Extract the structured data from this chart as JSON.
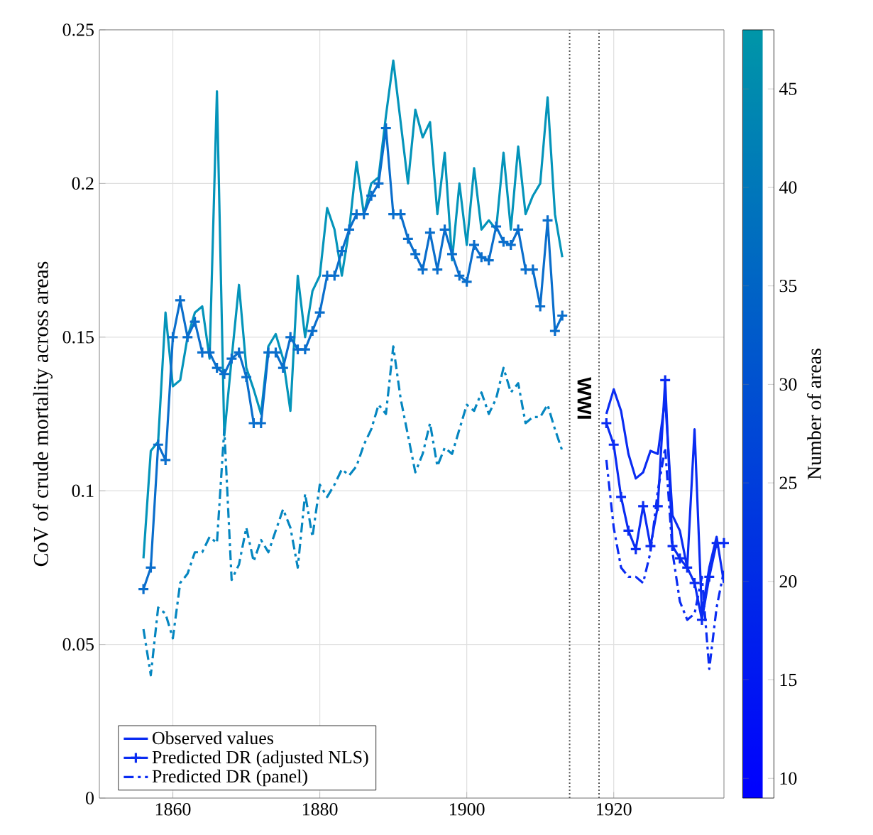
{
  "chart_data": {
    "type": "line",
    "ylabel": "CoV of crude mortality across areas",
    "clabel": "Number of areas",
    "clim": [
      9,
      48
    ],
    "cticks": [
      10,
      15,
      20,
      25,
      30,
      35,
      40,
      45
    ],
    "xlim": [
      1850,
      1935
    ],
    "xticks": [
      1860,
      1880,
      1900,
      1920
    ],
    "ylim": [
      0,
      0.25
    ],
    "yticks": [
      0,
      0.05,
      0.1,
      0.15,
      0.2,
      0.25
    ],
    "grid": true,
    "legend": "bottom left",
    "annotations": [
      "WWI"
    ],
    "ref_lines": [
      {
        "axis": "x",
        "value": 1914,
        "color": "#555555",
        "line_style": "dotted"
      },
      {
        "axis": "x",
        "value": 1918,
        "color": "#555555",
        "line_style": "dotted"
      }
    ],
    "series": [
      {
        "name": "Observed values",
        "color": "#0a2cf2",
        "marker": "none",
        "line_style": "solid",
        "x": [
          1919,
          1920,
          1921,
          1922,
          1923,
          1924,
          1925,
          1926,
          1927,
          1928,
          1929,
          1930,
          1931,
          1932,
          1933,
          1934,
          1935
        ],
        "values": [
          0.125,
          0.133,
          0.126,
          0.112,
          0.104,
          0.106,
          0.113,
          0.112,
          0.13,
          0.092,
          0.087,
          0.075,
          0.12,
          0.06,
          0.075,
          0.085,
          0.07
        ]
      },
      {
        "name": "Predicted DR (adjusted NLS)",
        "color": "#0a2cf2",
        "marker": "cross",
        "line_style": "solid",
        "x": [
          1919,
          1920,
          1921,
          1922,
          1923,
          1924,
          1925,
          1926,
          1927,
          1928,
          1929,
          1930,
          1931,
          1932,
          1933,
          1934,
          1935
        ],
        "values": [
          0.122,
          0.115,
          0.098,
          0.087,
          0.081,
          0.095,
          0.082,
          0.095,
          0.136,
          0.082,
          0.078,
          0.075,
          0.07,
          0.058,
          0.072,
          0.083,
          0.083
        ]
      },
      {
        "name": "Predicted DR (panel)",
        "color": "#0a2cf2",
        "marker": "none",
        "line_style": "dashdot",
        "x": [
          1919,
          1920,
          1921,
          1922,
          1923,
          1924,
          1925,
          1926,
          1927,
          1928,
          1929,
          1930,
          1931,
          1932,
          1933,
          1934,
          1935
        ],
        "values": [
          0.11,
          0.088,
          0.075,
          0.072,
          0.072,
          0.07,
          0.08,
          0.1,
          0.114,
          0.08,
          0.064,
          0.058,
          0.06,
          0.072,
          0.042,
          0.062,
          0.074
        ]
      },
      {
        "color": "#0494ba",
        "marker": "none",
        "line_style": "solid",
        "x": [
          1856,
          1857,
          1858,
          1859,
          1860,
          1861,
          1862,
          1863,
          1864,
          1865,
          1866,
          1867,
          1868,
          1869,
          1870,
          1871,
          1872,
          1873,
          1874,
          1875,
          1876,
          1877,
          1878,
          1879,
          1880,
          1881,
          1882,
          1883,
          1884,
          1885,
          1886,
          1887,
          1888,
          1889,
          1890,
          1891,
          1892,
          1893,
          1894,
          1895,
          1896,
          1897,
          1898,
          1899,
          1900,
          1901,
          1902,
          1903,
          1904,
          1905,
          1906,
          1907,
          1908,
          1909,
          1910,
          1911,
          1912,
          1913
        ],
        "values": [
          0.078,
          0.113,
          0.116,
          0.158,
          0.134,
          0.136,
          0.15,
          0.158,
          0.16,
          0.143,
          0.23,
          0.118,
          0.143,
          0.167,
          0.14,
          0.133,
          0.125,
          0.147,
          0.151,
          0.143,
          0.126,
          0.17,
          0.15,
          0.165,
          0.17,
          0.192,
          0.185,
          0.17,
          0.185,
          0.207,
          0.19,
          0.2,
          0.202,
          0.222,
          0.24,
          0.22,
          0.2,
          0.224,
          0.215,
          0.22,
          0.19,
          0.21,
          0.175,
          0.2,
          0.18,
          0.205,
          0.185,
          0.188,
          0.185,
          0.21,
          0.185,
          0.212,
          0.19,
          0.196,
          0.2,
          0.228,
          0.19,
          0.176
        ]
      },
      {
        "color": "#0a6ecc",
        "marker": "cross",
        "line_style": "solid",
        "x": [
          1856,
          1857,
          1858,
          1859,
          1860,
          1861,
          1862,
          1863,
          1864,
          1865,
          1866,
          1867,
          1868,
          1869,
          1870,
          1871,
          1872,
          1873,
          1874,
          1875,
          1876,
          1877,
          1878,
          1879,
          1880,
          1881,
          1882,
          1883,
          1884,
          1885,
          1886,
          1887,
          1888,
          1889,
          1890,
          1891,
          1892,
          1893,
          1894,
          1895,
          1896,
          1897,
          1898,
          1899,
          1900,
          1901,
          1902,
          1903,
          1904,
          1905,
          1906,
          1907,
          1908,
          1909,
          1910,
          1911,
          1912,
          1913
        ],
        "values": [
          0.068,
          0.075,
          0.115,
          0.11,
          0.15,
          0.162,
          0.15,
          0.155,
          0.145,
          0.145,
          0.14,
          0.138,
          0.143,
          0.145,
          0.137,
          0.122,
          0.122,
          0.145,
          0.145,
          0.14,
          0.15,
          0.146,
          0.146,
          0.152,
          0.158,
          0.17,
          0.17,
          0.178,
          0.185,
          0.19,
          0.19,
          0.196,
          0.2,
          0.218,
          0.19,
          0.19,
          0.182,
          0.177,
          0.172,
          0.184,
          0.172,
          0.185,
          0.177,
          0.17,
          0.168,
          0.18,
          0.176,
          0.175,
          0.186,
          0.181,
          0.18,
          0.185,
          0.172,
          0.172,
          0.16,
          0.188,
          0.152,
          0.157
        ]
      },
      {
        "color": "#0586c0",
        "marker": "none",
        "line_style": "dashdot",
        "x": [
          1856,
          1857,
          1858,
          1859,
          1860,
          1861,
          1862,
          1863,
          1864,
          1865,
          1866,
          1867,
          1868,
          1869,
          1870,
          1871,
          1872,
          1873,
          1874,
          1875,
          1876,
          1877,
          1878,
          1879,
          1880,
          1881,
          1882,
          1883,
          1884,
          1885,
          1886,
          1887,
          1888,
          1889,
          1890,
          1891,
          1892,
          1893,
          1894,
          1895,
          1896,
          1897,
          1898,
          1899,
          1900,
          1901,
          1902,
          1903,
          1904,
          1905,
          1906,
          1907,
          1908,
          1909,
          1910,
          1911,
          1912,
          1913
        ],
        "values": [
          0.055,
          0.04,
          0.062,
          0.06,
          0.052,
          0.07,
          0.073,
          0.08,
          0.08,
          0.085,
          0.083,
          0.12,
          0.071,
          0.076,
          0.088,
          0.077,
          0.084,
          0.08,
          0.087,
          0.094,
          0.088,
          0.075,
          0.099,
          0.085,
          0.102,
          0.098,
          0.102,
          0.107,
          0.105,
          0.108,
          0.115,
          0.12,
          0.128,
          0.125,
          0.147,
          0.13,
          0.118,
          0.106,
          0.112,
          0.122,
          0.108,
          0.114,
          0.112,
          0.12,
          0.128,
          0.126,
          0.132,
          0.125,
          0.13,
          0.14,
          0.132,
          0.135,
          0.122,
          0.124,
          0.124,
          0.128,
          0.12,
          0.113
        ]
      }
    ]
  }
}
